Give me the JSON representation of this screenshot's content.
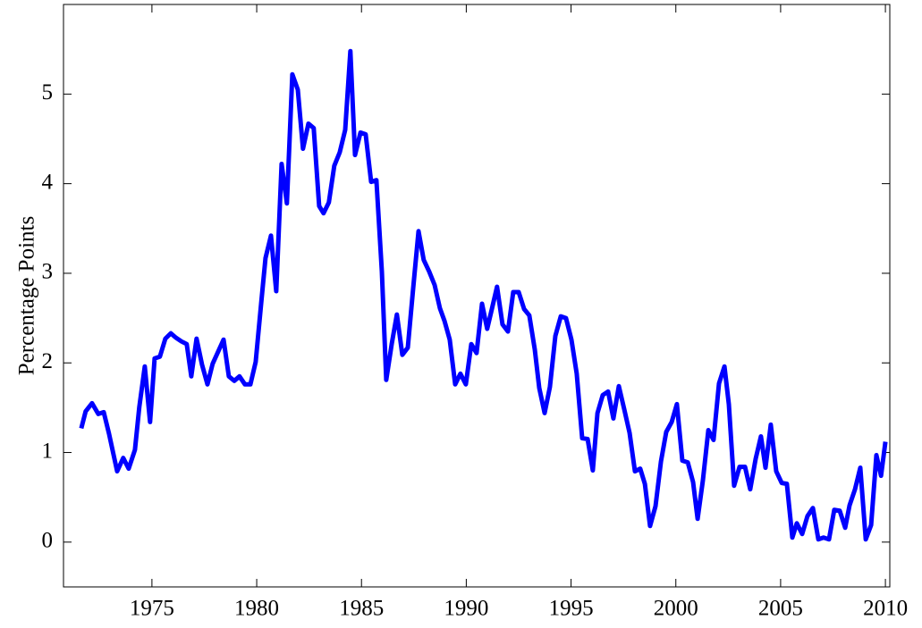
{
  "chart_data": {
    "type": "line",
    "y_label": "Percentage Points",
    "x": [
      1971.63,
      1971.84,
      1972.14,
      1972.44,
      1972.7,
      1972.95,
      1973.34,
      1973.63,
      1973.89,
      1974.19,
      1974.4,
      1974.66,
      1974.91,
      1975.13,
      1975.38,
      1975.64,
      1975.9,
      1976.15,
      1976.41,
      1976.66,
      1976.88,
      1977.13,
      1977.39,
      1977.65,
      1977.9,
      1978.42,
      1978.67,
      1978.93,
      1979.18,
      1979.44,
      1979.7,
      1979.95,
      1980.21,
      1980.42,
      1980.68,
      1980.93,
      1981.19,
      1981.44,
      1981.7,
      1981.96,
      1982.21,
      1982.47,
      1982.72,
      1982.98,
      1983.19,
      1983.44,
      1983.7,
      1983.96,
      1984.22,
      1984.47,
      1984.69,
      1984.95,
      1985.2,
      1985.46,
      1985.71,
      1985.97,
      1986.18,
      1986.44,
      1986.69,
      1986.95,
      1987.21,
      1987.46,
      1987.72,
      1987.97,
      1988.23,
      1988.49,
      1988.74,
      1988.96,
      1989.21,
      1989.47,
      1989.72,
      1989.98,
      1990.24,
      1990.49,
      1990.75,
      1991.0,
      1991.22,
      1991.47,
      1991.73,
      1991.99,
      1992.24,
      1992.5,
      1992.76,
      1993.01,
      1993.27,
      1993.48,
      1993.74,
      1993.99,
      1994.25,
      1994.51,
      1994.76,
      1995.02,
      1995.27,
      1995.53,
      1995.79,
      1996.04,
      1996.26,
      1996.51,
      1996.77,
      1997.02,
      1997.28,
      1997.54,
      1997.79,
      1998.05,
      1998.3,
      1998.52,
      1998.77,
      1999.03,
      1999.29,
      1999.54,
      1999.8,
      2000.05,
      2000.31,
      2000.57,
      2000.82,
      2001.04,
      2001.29,
      2001.55,
      2001.8,
      2002.06,
      2002.32,
      2002.53,
      2002.78,
      2003.04,
      2003.3,
      2003.55,
      2003.81,
      2004.06,
      2004.28,
      2004.53,
      2004.79,
      2005.05,
      2005.3,
      2005.56,
      2005.77,
      2006.03,
      2006.28,
      2006.54,
      2006.8,
      2007.05,
      2007.31,
      2007.56,
      2007.82,
      2008.08,
      2008.29,
      2008.55,
      2008.8,
      2009.06,
      2009.32,
      2009.57,
      2009.79,
      2010.0
    ],
    "values": [
      1.27,
      1.46,
      1.55,
      1.43,
      1.45,
      1.21,
      0.79,
      0.94,
      0.82,
      1.03,
      1.51,
      1.96,
      1.34,
      2.05,
      2.07,
      2.27,
      2.33,
      2.28,
      2.24,
      2.21,
      1.85,
      2.27,
      1.98,
      1.76,
      1.99,
      2.26,
      1.85,
      1.8,
      1.85,
      1.76,
      1.76,
      2.01,
      2.66,
      3.17,
      3.42,
      2.8,
      4.22,
      3.78,
      5.22,
      5.05,
      4.39,
      4.67,
      4.62,
      3.75,
      3.67,
      3.79,
      4.2,
      4.35,
      4.6,
      5.48,
      4.32,
      4.57,
      4.55,
      4.02,
      4.04,
      3.02,
      1.81,
      2.21,
      2.54,
      2.09,
      2.17,
      2.82,
      3.47,
      3.15,
      3.02,
      2.87,
      2.61,
      2.47,
      2.26,
      1.76,
      1.88,
      1.76,
      2.21,
      2.11,
      2.66,
      2.38,
      2.6,
      2.85,
      2.43,
      2.35,
      2.79,
      2.79,
      2.6,
      2.53,
      2.15,
      1.72,
      1.44,
      1.73,
      2.3,
      2.52,
      2.5,
      2.26,
      1.88,
      1.16,
      1.15,
      0.8,
      1.44,
      1.64,
      1.68,
      1.38,
      1.74,
      1.48,
      1.22,
      0.79,
      0.82,
      0.65,
      0.18,
      0.4,
      0.9,
      1.23,
      1.34,
      1.54,
      0.91,
      0.89,
      0.67,
      0.26,
      0.69,
      1.25,
      1.14,
      1.77,
      1.96,
      1.54,
      0.63,
      0.84,
      0.84,
      0.59,
      0.93,
      1.18,
      0.83,
      1.31,
      0.79,
      0.66,
      0.65,
      0.05,
      0.21,
      0.09,
      0.29,
      0.38,
      0.03,
      0.05,
      0.03,
      0.36,
      0.35,
      0.16,
      0.41,
      0.59,
      0.83,
      0.03,
      0.19,
      0.97,
      0.74,
      1.12
    ],
    "color": "#0000ff",
    "xlim": [
      1970.78,
      2010.21
    ],
    "xticks": [
      1975,
      1980,
      1985,
      1990,
      1995,
      2000,
      2005,
      2010
    ],
    "ylim": [
      -0.5,
      6
    ],
    "yticks": [
      0,
      1,
      2,
      3,
      4,
      5
    ]
  }
}
